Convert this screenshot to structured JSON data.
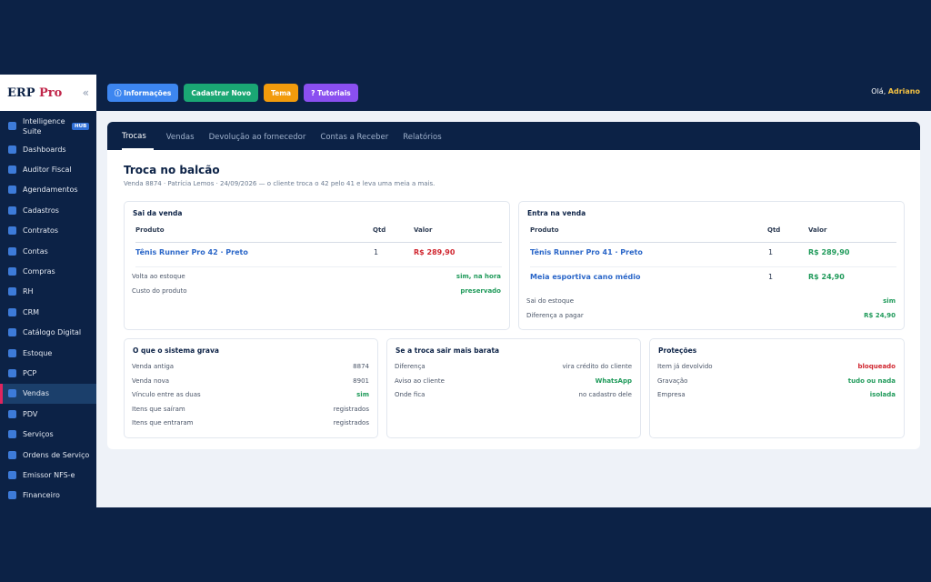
{
  "brand": {
    "erp": "ERP",
    "pro": "Pro",
    "collapse": "«"
  },
  "sidebar": {
    "items": [
      {
        "label": "Intelligence Suite",
        "badge": "HUB"
      },
      {
        "label": "Dashboards"
      },
      {
        "label": "Auditor Fiscal"
      },
      {
        "label": "Agendamentos"
      },
      {
        "label": "Cadastros"
      },
      {
        "label": "Contratos"
      },
      {
        "label": "Contas"
      },
      {
        "label": "Compras"
      },
      {
        "label": "RH"
      },
      {
        "label": "CRM"
      },
      {
        "label": "Catálogo Digital"
      },
      {
        "label": "Estoque"
      },
      {
        "label": "PCP"
      },
      {
        "label": "Vendas",
        "active": true
      },
      {
        "label": "PDV"
      },
      {
        "label": "Serviços"
      },
      {
        "label": "Ordens de Serviço"
      },
      {
        "label": "Emissor NFS-e"
      },
      {
        "label": "Financeiro"
      }
    ]
  },
  "topbar": {
    "buttons": [
      {
        "label": "ⓘ Informações",
        "color": "#3d86f0"
      },
      {
        "label": "Cadastrar Novo",
        "color": "#1aa774"
      },
      {
        "label": "Tema",
        "color": "#f29b0c"
      },
      {
        "label": "? Tutoriais",
        "color": "#8a4ff0"
      }
    ],
    "greeting": "Olá,",
    "user": "Adriano"
  },
  "tabs": [
    "Trocas",
    "Vendas",
    "Devolução ao fornecedor",
    "Contas a Receber",
    "Relatórios"
  ],
  "page": {
    "title": "Troca no balcão",
    "subtitle": "Venda 8874 · Patrícia Lemos · 24/09/2026 — o cliente troca o 42 pelo 41 e leva uma meia a mais."
  },
  "sai": {
    "title": "Sai da venda",
    "headers": [
      "Produto",
      "Qtd",
      "Valor"
    ],
    "rows": [
      {
        "produto": "Tênis Runner Pro 42 · Preto",
        "qtd": "1",
        "valor": "R$ 289,90"
      }
    ],
    "kv": [
      {
        "k": "Volta ao estoque",
        "v": "sim, na hora"
      },
      {
        "k": "Custo do produto",
        "v": "preservado"
      }
    ]
  },
  "entra": {
    "title": "Entra na venda",
    "headers": [
      "Produto",
      "Qtd",
      "Valor"
    ],
    "rows": [
      {
        "produto": "Tênis Runner Pro 41 · Preto",
        "qtd": "1",
        "valor": "R$ 289,90"
      },
      {
        "produto": "Meia esportiva cano médio",
        "qtd": "1",
        "valor": "R$ 24,90"
      }
    ],
    "kv": [
      {
        "k": "Sai do estoque",
        "v": "sim"
      },
      {
        "k": "Diferença a pagar",
        "v": "R$ 24,90"
      }
    ]
  },
  "grava": {
    "title": "O que o sistema grava",
    "kv": [
      {
        "k": "Venda antiga",
        "v": "8874"
      },
      {
        "k": "Venda nova",
        "v": "8901"
      },
      {
        "k": "Vínculo entre as duas",
        "v": "sim"
      },
      {
        "k": "Itens que saíram",
        "v": "registrados"
      },
      {
        "k": "Itens que entraram",
        "v": "registrados"
      }
    ]
  },
  "barata": {
    "title": "Se a troca sair mais barata",
    "kv": [
      {
        "k": "Diferença",
        "v": "vira crédito do cliente"
      },
      {
        "k": "Aviso ao cliente",
        "v": "WhatsApp"
      },
      {
        "k": "Onde fica",
        "v": "no cadastro dele"
      }
    ]
  },
  "protecoes": {
    "title": "Proteções",
    "kv": [
      {
        "k": "Item já devolvido",
        "v": "bloqueado"
      },
      {
        "k": "Gravação",
        "v": "tudo ou nada"
      },
      {
        "k": "Empresa",
        "v": "isolada"
      }
    ]
  }
}
